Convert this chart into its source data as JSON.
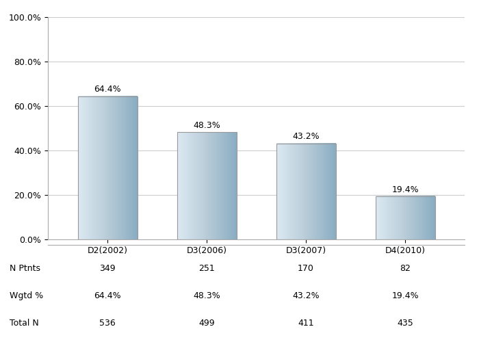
{
  "categories": [
    "D2(2002)",
    "D3(2006)",
    "D3(2007)",
    "D4(2010)"
  ],
  "values": [
    64.4,
    48.3,
    43.2,
    19.4
  ],
  "labels": [
    "64.4%",
    "48.3%",
    "43.2%",
    "19.4%"
  ],
  "n_ptnts": [
    349,
    251,
    170,
    82
  ],
  "wgtd_pct": [
    "64.4%",
    "48.3%",
    "43.2%",
    "19.4%"
  ],
  "total_n": [
    536,
    499,
    411,
    435
  ],
  "ylim": [
    0,
    100
  ],
  "yticks": [
    0,
    20,
    40,
    60,
    80,
    100
  ],
  "ytick_labels": [
    "0.0%",
    "20.0%",
    "40.0%",
    "60.0%",
    "80.0%",
    "100.0%"
  ],
  "background_color": "#ffffff",
  "plot_bg_color": "#ffffff",
  "grid_color": "#cccccc",
  "text_color": "#000000",
  "table_labels": [
    "N Ptnts",
    "Wgtd %",
    "Total N"
  ],
  "bar_width": 0.6,
  "label_fontsize": 9,
  "tick_fontsize": 9,
  "table_fontsize": 9
}
